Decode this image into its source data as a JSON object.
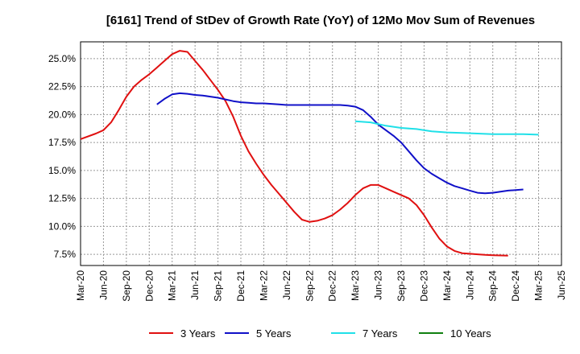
{
  "chart_data": {
    "type": "line",
    "title": "[6161]  Trend of StDev of Growth Rate (YoY) of 12Mo Mov Sum of Revenues",
    "xlabel": "",
    "ylabel": "",
    "x_ticks": [
      "Mar-20",
      "Jun-20",
      "Sep-20",
      "Dec-20",
      "Mar-21",
      "Jun-21",
      "Sep-21",
      "Dec-21",
      "Mar-22",
      "Jun-22",
      "Sep-22",
      "Dec-22",
      "Mar-23",
      "Jun-23",
      "Sep-23",
      "Dec-23",
      "Mar-24",
      "Jun-24",
      "Sep-24",
      "Dec-24",
      "Mar-25",
      "Jun-25"
    ],
    "y_ticks": [
      "7.5%",
      "10.0%",
      "12.5%",
      "15.0%",
      "17.5%",
      "20.0%",
      "22.5%",
      "25.0%"
    ],
    "y_tick_values": [
      7.5,
      10,
      12.5,
      15,
      17.5,
      20,
      22.5,
      25
    ],
    "ylim": [
      6.5,
      26.5
    ],
    "xlim": [
      0,
      63
    ],
    "grid": true,
    "legend_position": "bottom",
    "series": [
      {
        "name": "3 Years",
        "color": "#e01010",
        "points": [
          [
            0,
            17.8
          ],
          [
            2,
            18.3
          ],
          [
            3,
            18.6
          ],
          [
            4,
            19.3
          ],
          [
            5,
            20.4
          ],
          [
            6,
            21.6
          ],
          [
            7,
            22.5
          ],
          [
            8,
            23.1
          ],
          [
            9,
            23.6
          ],
          [
            10,
            24.2
          ],
          [
            11,
            24.8
          ],
          [
            12,
            25.4
          ],
          [
            13,
            25.7
          ],
          [
            14,
            25.6
          ],
          [
            15,
            24.8
          ],
          [
            16,
            24.0
          ],
          [
            17,
            23.1
          ],
          [
            18,
            22.2
          ],
          [
            19,
            21.2
          ],
          [
            20,
            19.8
          ],
          [
            21,
            18.1
          ],
          [
            22,
            16.7
          ],
          [
            23,
            15.6
          ],
          [
            24,
            14.6
          ],
          [
            25,
            13.7
          ],
          [
            26,
            12.9
          ],
          [
            27,
            12.1
          ],
          [
            28,
            11.3
          ],
          [
            29,
            10.6
          ],
          [
            30,
            10.4
          ],
          [
            31,
            10.5
          ],
          [
            32,
            10.7
          ],
          [
            33,
            11.0
          ],
          [
            34,
            11.5
          ],
          [
            35,
            12.1
          ],
          [
            36,
            12.8
          ],
          [
            37,
            13.4
          ],
          [
            38,
            13.7
          ],
          [
            39,
            13.7
          ],
          [
            40,
            13.4
          ],
          [
            41,
            13.1
          ],
          [
            42,
            12.8
          ],
          [
            43,
            12.5
          ],
          [
            44,
            11.9
          ],
          [
            45,
            11.0
          ],
          [
            46,
            9.9
          ],
          [
            47,
            8.9
          ],
          [
            48,
            8.2
          ],
          [
            49,
            7.8
          ],
          [
            50,
            7.6
          ],
          [
            51,
            7.55
          ],
          [
            52,
            7.5
          ],
          [
            53,
            7.45
          ],
          [
            54,
            7.42
          ],
          [
            55,
            7.4
          ],
          [
            56,
            7.38
          ]
        ]
      },
      {
        "name": "5 Years",
        "color": "#1010c8",
        "points": [
          [
            10,
            20.9
          ],
          [
            11,
            21.4
          ],
          [
            12,
            21.8
          ],
          [
            13,
            21.9
          ],
          [
            14,
            21.85
          ],
          [
            15,
            21.75
          ],
          [
            16,
            21.7
          ],
          [
            17,
            21.6
          ],
          [
            18,
            21.5
          ],
          [
            19,
            21.35
          ],
          [
            20,
            21.2
          ],
          [
            21,
            21.1
          ],
          [
            22,
            21.05
          ],
          [
            23,
            21.0
          ],
          [
            24,
            21.0
          ],
          [
            25,
            20.95
          ],
          [
            26,
            20.9
          ],
          [
            27,
            20.85
          ],
          [
            28,
            20.85
          ],
          [
            29,
            20.85
          ],
          [
            30,
            20.85
          ],
          [
            31,
            20.85
          ],
          [
            32,
            20.85
          ],
          [
            33,
            20.85
          ],
          [
            34,
            20.85
          ],
          [
            35,
            20.8
          ],
          [
            36,
            20.7
          ],
          [
            37,
            20.4
          ],
          [
            38,
            19.8
          ],
          [
            39,
            19.1
          ],
          [
            40,
            18.6
          ],
          [
            41,
            18.1
          ],
          [
            42,
            17.5
          ],
          [
            43,
            16.7
          ],
          [
            44,
            15.9
          ],
          [
            45,
            15.2
          ],
          [
            46,
            14.7
          ],
          [
            47,
            14.3
          ],
          [
            48,
            13.9
          ],
          [
            49,
            13.6
          ],
          [
            50,
            13.4
          ],
          [
            51,
            13.2
          ],
          [
            52,
            13.0
          ],
          [
            53,
            12.95
          ],
          [
            54,
            13.0
          ],
          [
            55,
            13.1
          ],
          [
            56,
            13.2
          ],
          [
            57,
            13.25
          ],
          [
            58,
            13.3
          ]
        ]
      },
      {
        "name": "7 Years",
        "color": "#20e0e8",
        "points": [
          [
            36,
            19.4
          ],
          [
            38,
            19.3
          ],
          [
            40,
            19.0
          ],
          [
            42,
            18.8
          ],
          [
            44,
            18.7
          ],
          [
            46,
            18.5
          ],
          [
            48,
            18.4
          ],
          [
            50,
            18.35
          ],
          [
            52,
            18.3
          ],
          [
            54,
            18.25
          ],
          [
            56,
            18.25
          ],
          [
            58,
            18.25
          ],
          [
            60,
            18.2
          ]
        ]
      },
      {
        "name": "10 Years",
        "color": "#108010",
        "points": []
      }
    ]
  }
}
